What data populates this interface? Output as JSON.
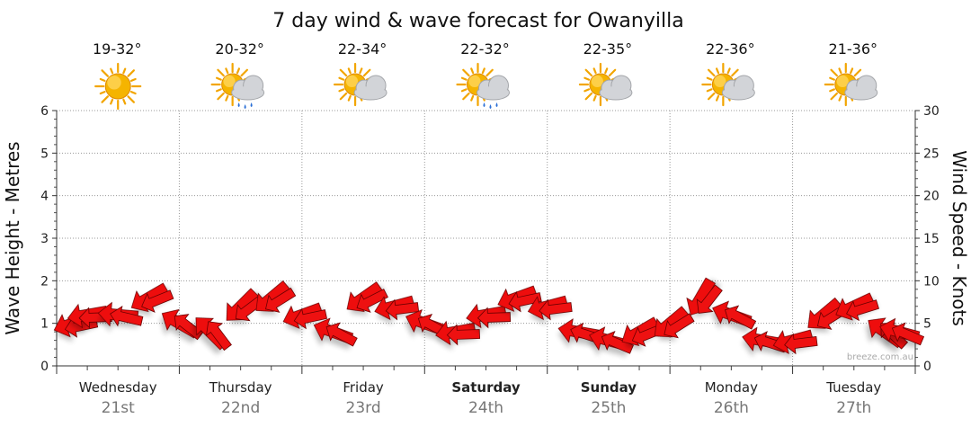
{
  "chart_data": {
    "type": "line",
    "title": "7 day wind & wave forecast for Owanyilla",
    "ylabel_left": "Wave Height - Metres",
    "ylabel_right": "Wind Speed - Knots",
    "ylim_left": [
      0,
      6
    ],
    "ylim_right": [
      0,
      30
    ],
    "yticks_left": [
      "0",
      "1",
      "2",
      "3",
      "4",
      "5",
      "6"
    ],
    "yticks_right": [
      "0",
      "5",
      "10",
      "15",
      "20",
      "25",
      "30"
    ],
    "grid": true,
    "watermark": "breeze.com.au",
    "days": [
      {
        "name": "Wednesday",
        "date": "21st",
        "temp": "19-32°",
        "icon": "sunny-icon",
        "bold": false
      },
      {
        "name": "Thursday",
        "date": "22nd",
        "temp": "20-32°",
        "icon": "sun-cloud-rain-icon",
        "bold": false
      },
      {
        "name": "Friday",
        "date": "23rd",
        "temp": "22-34°",
        "icon": "sun-cloud-icon",
        "bold": false
      },
      {
        "name": "Saturday",
        "date": "24th",
        "temp": "22-32°",
        "icon": "sun-cloud-rain-icon",
        "bold": true
      },
      {
        "name": "Sunday",
        "date": "25th",
        "temp": "22-35°",
        "icon": "sun-cloud-icon",
        "bold": true
      },
      {
        "name": "Monday",
        "date": "26th",
        "temp": "22-36°",
        "icon": "sun-cloud-icon",
        "bold": false
      },
      {
        "name": "Tuesday",
        "date": "27th",
        "temp": "21-36°",
        "icon": "sun-cloud-icon",
        "bold": false
      }
    ],
    "series": [
      {
        "name": "Wind",
        "units": "knots",
        "color": "#ee1111",
        "x_hours": [
          0,
          6,
          12,
          18,
          24,
          30,
          36,
          42,
          48,
          54,
          60,
          66,
          72,
          78,
          84,
          90,
          96,
          102,
          108,
          114,
          120,
          126,
          132,
          138,
          144,
          150,
          156,
          162,
          168
        ],
        "speed_knots": [
          5,
          6,
          6,
          8,
          5,
          4,
          7,
          8,
          6,
          4,
          8,
          7,
          5,
          4,
          6,
          8,
          7,
          4,
          3,
          4,
          5,
          8,
          6,
          3,
          3,
          6,
          7,
          4,
          4
        ],
        "arrow_angle_deg": [
          -20,
          -10,
          5,
          -30,
          30,
          45,
          -45,
          -40,
          -20,
          20,
          -35,
          -15,
          20,
          -10,
          -10,
          -20,
          -15,
          10,
          15,
          -30,
          -40,
          -60,
          20,
          10,
          -15,
          -40,
          -25,
          35,
          15
        ]
      }
    ]
  }
}
